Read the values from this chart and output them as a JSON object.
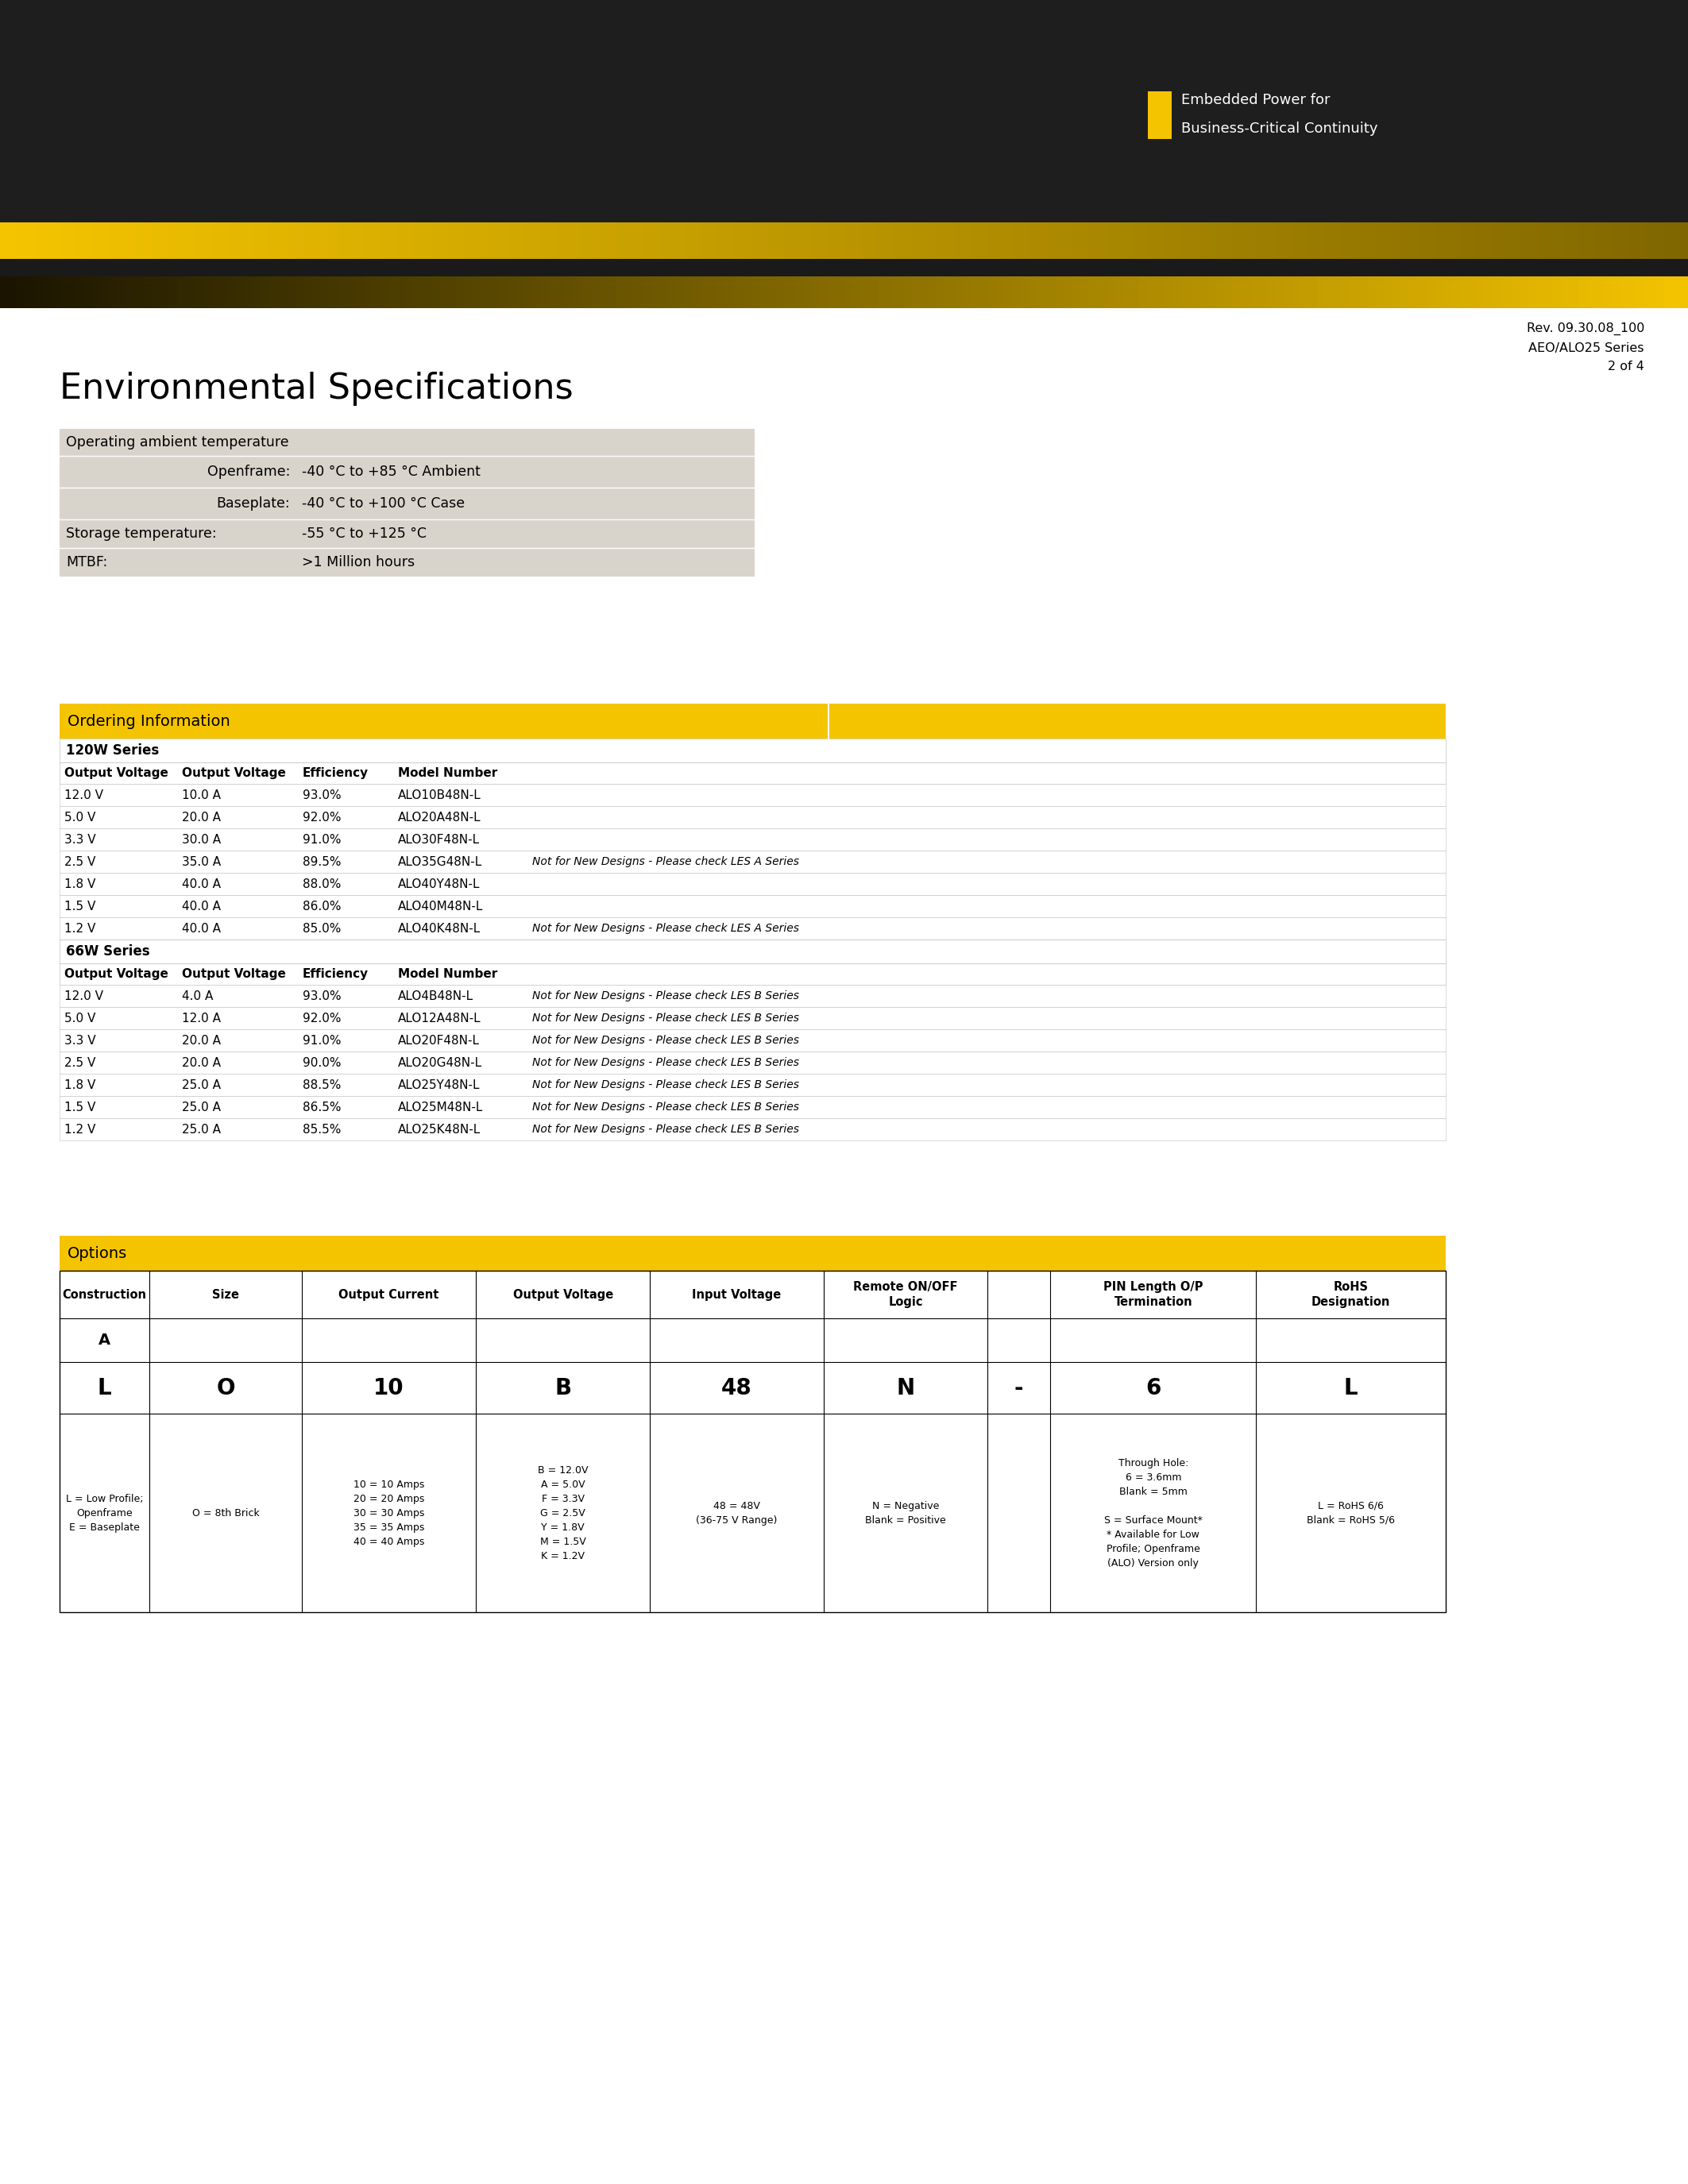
{
  "page_bg": "#ffffff",
  "header_dark_bg": "#1e1e1e",
  "yellow_color": "#f5c400",
  "dark_strip_color": "#1a1a1a",
  "env_table_bg": "#d8d4cc",
  "ordering_hdr_bg": "#f5c400",
  "logo_sq_color": "#f5c400",
  "logo_line1": "Embedded Power for",
  "logo_line2": "Business-Critical Continuity",
  "rev_text": "Rev. 09.30.08_100\nAEO/ALO25 Series\n2 of 4",
  "env_title": "Environmental Specifications",
  "env_rows": [
    {
      "label": "Operating ambient temperature",
      "indent": false,
      "value": ""
    },
    {
      "label": "Openframe:",
      "indent": true,
      "value": "-40 °C to +85 °C Ambient"
    },
    {
      "label": "Baseplate:",
      "indent": true,
      "value": "-40 °C to +100 °C Case"
    },
    {
      "label": "Storage temperature:",
      "indent": false,
      "value": "-55 °C to +125 °C"
    },
    {
      "label": "MTBF:",
      "indent": false,
      "value": ">1 Million hours"
    }
  ],
  "ordering_title": "Ordering Information",
  "s120_label": "120W Series",
  "s120_col_headers": [
    "Output Voltage",
    "Output Voltage",
    "Efficiency",
    "Model Number"
  ],
  "s120_rows": [
    [
      "12.0 V",
      "10.0 A",
      "93.0%",
      "ALO10B48N-L",
      ""
    ],
    [
      "5.0 V",
      "20.0 A",
      "92.0%",
      "ALO20A48N-L",
      ""
    ],
    [
      "3.3 V",
      "30.0 A",
      "91.0%",
      "ALO30F48N-L",
      ""
    ],
    [
      "2.5 V",
      "35.0 A",
      "89.5%",
      "ALO35G48N-L",
      "Not for New Designs - Please check LES A Series"
    ],
    [
      "1.8 V",
      "40.0 A",
      "88.0%",
      "ALO40Y48N-L",
      ""
    ],
    [
      "1.5 V",
      "40.0 A",
      "86.0%",
      "ALO40M48N-L",
      ""
    ],
    [
      "1.2 V",
      "40.0 A",
      "85.0%",
      "ALO40K48N-L",
      "Not for New Designs - Please check LES A Series"
    ]
  ],
  "s66_label": "66W Series",
  "s66_col_headers": [
    "Output Voltage",
    "Output Voltage",
    "Efficiency",
    "Model Number"
  ],
  "s66_rows": [
    [
      "12.0 V",
      "4.0 A",
      "93.0%",
      "ALO4B48N-L",
      "Not for New Designs - Please check LES B Series"
    ],
    [
      "5.0 V",
      "12.0 A",
      "92.0%",
      "ALO12A48N-L",
      "Not for New Designs - Please check LES B Series"
    ],
    [
      "3.3 V",
      "20.0 A",
      "91.0%",
      "ALO20F48N-L",
      "Not for New Designs - Please check LES B Series"
    ],
    [
      "2.5 V",
      "20.0 A",
      "90.0%",
      "ALO20G48N-L",
      "Not for New Designs - Please check LES B Series"
    ],
    [
      "1.8 V",
      "25.0 A",
      "88.5%",
      "ALO25Y48N-L",
      "Not for New Designs - Please check LES B Series"
    ],
    [
      "1.5 V",
      "25.0 A",
      "86.5%",
      "ALO25M48N-L",
      "Not for New Designs - Please check LES B Series"
    ],
    [
      "1.2 V",
      "25.0 A",
      "85.5%",
      "ALO25K48N-L",
      "Not for New Designs - Please check LES B Series"
    ]
  ],
  "options_title": "Options",
  "options_col_headers": [
    "Construction",
    "Size",
    "Output Current",
    "Output Voltage",
    "Input Voltage",
    "Remote ON/OFF\nLogic",
    "",
    "PIN Length O/P\nTermination",
    "RoHS\nDesignation"
  ],
  "options_row_letter": "A",
  "options_big": [
    "L",
    "O",
    "10",
    "B",
    "48",
    "N",
    "-",
    "6",
    "L"
  ],
  "options_small": [
    "L = Low Profile;\nOpenframe\nE = Baseplate",
    "O = 8th Brick",
    "10 = 10 Amps\n20 = 20 Amps\n30 = 30 Amps\n35 = 35 Amps\n40 = 40 Amps",
    "B = 12.0V\nA = 5.0V\nF = 3.3V\nG = 2.5V\nY = 1.8V\nM = 1.5V\nK = 1.2V",
    "48 = 48V\n(36-75 V Range)",
    "N = Negative\nBlank = Positive",
    "",
    "Through Hole:\n6 = 3.6mm\nBlank = 5mm\n\nS = Surface Mount*\n* Available for Low\nProfile; Openframe\n(ALO) Version only",
    "L = RoHS 6/6\nBlank = RoHS 5/6"
  ]
}
